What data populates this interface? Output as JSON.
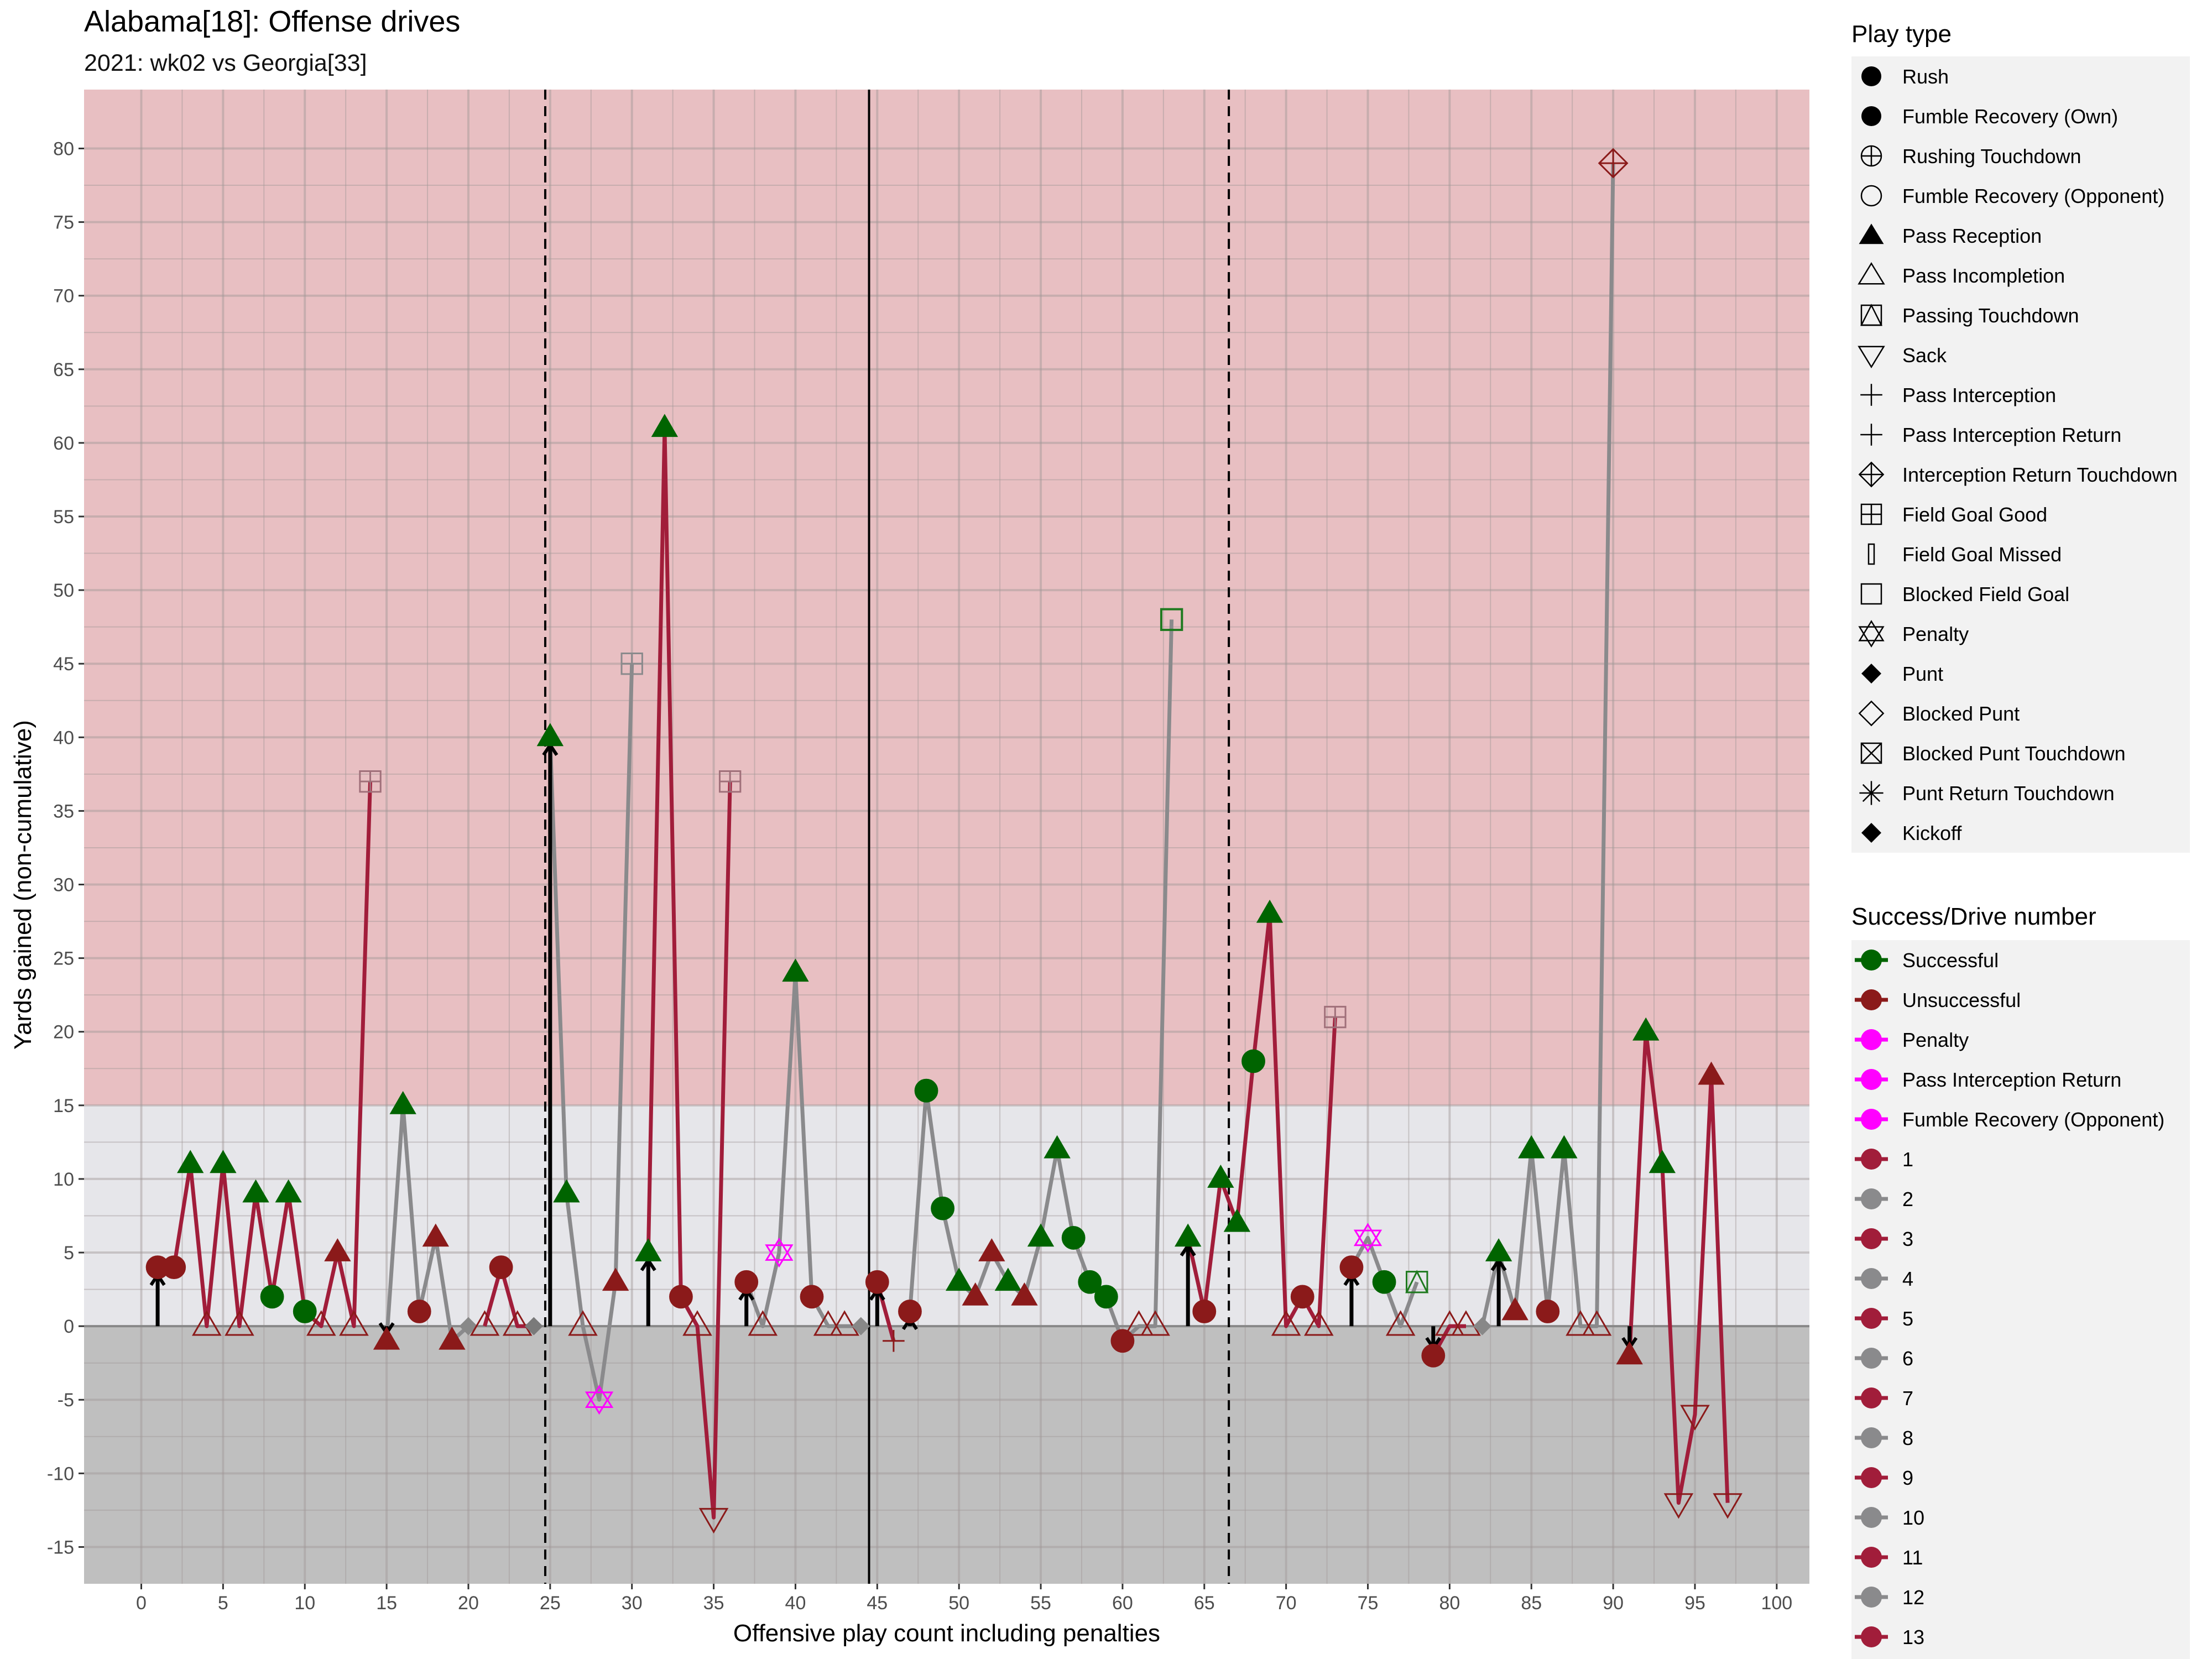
{
  "chart_data": {
    "type": "line",
    "title": "Alabama[18]: Offense drives",
    "subtitle": "2021: wk02 vs Georgia[33]",
    "xlabel": "Offensive play count including penalties",
    "ylabel": "Yards gained (non-cumulative)",
    "xlim": [
      -3.5,
      102
    ],
    "ylim": [
      -17.5,
      84
    ],
    "x_ticks": [
      0,
      5,
      10,
      15,
      20,
      25,
      30,
      35,
      40,
      45,
      50,
      55,
      60,
      65,
      70,
      75,
      80,
      85,
      90,
      95,
      100
    ],
    "y_ticks": [
      -15,
      -10,
      -5,
      0,
      5,
      10,
      15,
      20,
      25,
      30,
      35,
      40,
      45,
      50,
      55,
      60,
      65,
      70,
      75,
      80
    ],
    "bands": [
      {
        "from": 15,
        "to": 84,
        "color": "#e8bfc2"
      },
      {
        "from": 0,
        "to": 15,
        "color": "#e6e6ea"
      },
      {
        "from": -17.5,
        "to": 0,
        "color": "#bfbfbf"
      }
    ],
    "vlines": [
      {
        "x": 24.7,
        "style": "dashed"
      },
      {
        "x": 44.5,
        "style": "solid"
      },
      {
        "x": 66.5,
        "style": "dashed"
      }
    ],
    "drive_colors": {
      "odd": "#a11d3a",
      "even": "#8a8a8c"
    },
    "success_colors": {
      "Successful": "#006400",
      "Unsuccessful": "#8b1a1a",
      "Penalty": "#ff00ff"
    },
    "series": [
      {
        "name": "1",
        "points": [
          [
            1,
            4,
            "rush",
            "Unsuccessful"
          ],
          [
            2,
            4,
            "rush",
            "Unsuccessful"
          ],
          [
            3,
            11,
            "pass",
            "Successful"
          ],
          [
            4,
            0,
            "inc",
            "Unsuccessful"
          ],
          [
            5,
            11,
            "pass",
            "Successful"
          ],
          [
            6,
            0,
            "inc",
            "Unsuccessful"
          ],
          [
            7,
            9,
            "pass",
            "Successful"
          ],
          [
            8,
            2,
            "rush",
            "Successful"
          ],
          [
            9,
            9,
            "pass",
            "Successful"
          ],
          [
            10,
            1,
            "rush",
            "Successful"
          ],
          [
            11,
            0,
            "inc",
            "Unsuccessful"
          ],
          [
            12,
            5,
            "pass",
            "Unsuccessful"
          ],
          [
            13,
            0,
            "inc",
            "Unsuccessful"
          ],
          [
            14,
            37,
            "fg",
            "Unsuccessful"
          ]
        ]
      },
      {
        "name": "2",
        "points": [
          [
            15,
            -1,
            "pass",
            "Unsuccessful"
          ],
          [
            16,
            15,
            "pass",
            "Successful"
          ],
          [
            17,
            1,
            "rush",
            "Unsuccessful"
          ],
          [
            18,
            6,
            "pass",
            "Unsuccessful"
          ],
          [
            19,
            -1,
            "pass",
            "Unsuccessful"
          ],
          [
            20,
            0,
            "punt",
            "Unsuccessful"
          ]
        ]
      },
      {
        "name": "3",
        "points": [
          [
            21,
            0,
            "inc",
            "Unsuccessful"
          ],
          [
            22,
            4,
            "rush",
            "Unsuccessful"
          ],
          [
            23,
            0,
            "inc",
            "Unsuccessful"
          ],
          [
            24,
            0,
            "punt",
            "Unsuccessful"
          ]
        ]
      },
      {
        "name": "4",
        "points": [
          [
            25,
            40,
            "pass",
            "Successful"
          ],
          [
            26,
            9,
            "pass",
            "Successful"
          ],
          [
            27,
            0,
            "inc",
            "Unsuccessful"
          ],
          [
            28,
            -5,
            "pen",
            "Penalty"
          ],
          [
            29,
            3,
            "pass",
            "Unsuccessful"
          ],
          [
            30,
            45,
            "fg",
            "Unsuccessful"
          ]
        ]
      },
      {
        "name": "5",
        "points": [
          [
            31,
            5,
            "pass",
            "Successful"
          ],
          [
            32,
            61,
            "pass",
            "Successful"
          ],
          [
            33,
            2,
            "rush",
            "Unsuccessful"
          ],
          [
            34,
            0,
            "inc",
            "Unsuccessful"
          ],
          [
            35,
            -13,
            "sack",
            "Unsuccessful"
          ],
          [
            36,
            37,
            "fg",
            "Unsuccessful"
          ]
        ]
      },
      {
        "name": "6",
        "points": [
          [
            37,
            3,
            "rush",
            "Unsuccessful"
          ],
          [
            38,
            0,
            "inc",
            "Unsuccessful"
          ],
          [
            39,
            5,
            "pen",
            "Penalty"
          ],
          [
            40,
            24,
            "pass",
            "Successful"
          ],
          [
            41,
            2,
            "rush",
            "Unsuccessful"
          ],
          [
            42,
            0,
            "inc",
            "Unsuccessful"
          ],
          [
            43,
            0,
            "inc",
            "Unsuccessful"
          ],
          [
            44,
            0,
            "punt",
            "Unsuccessful"
          ]
        ]
      },
      {
        "name": "7",
        "points": [
          [
            45,
            3,
            "rush",
            "Unsuccessful"
          ],
          [
            46,
            -1,
            "int",
            "Unsuccessful"
          ]
        ]
      },
      {
        "name": "8",
        "points": [
          [
            47,
            1,
            "rush",
            "Unsuccessful"
          ],
          [
            48,
            16,
            "rush",
            "Successful"
          ],
          [
            49,
            8,
            "rush",
            "Successful"
          ],
          [
            50,
            3,
            "pass",
            "Successful"
          ],
          [
            51,
            2,
            "pass",
            "Unsuccessful"
          ],
          [
            52,
            5,
            "pass",
            "Unsuccessful"
          ],
          [
            53,
            3,
            "pass",
            "Successful"
          ],
          [
            54,
            2,
            "pass",
            "Unsuccessful"
          ],
          [
            55,
            6,
            "pass",
            "Successful"
          ],
          [
            56,
            12,
            "pass",
            "Successful"
          ],
          [
            57,
            6,
            "rush",
            "Successful"
          ],
          [
            58,
            3,
            "rush",
            "Successful"
          ],
          [
            59,
            2,
            "rush",
            "Successful"
          ],
          [
            60,
            -1,
            "rush",
            "Unsuccessful"
          ],
          [
            61,
            0,
            "inc",
            "Unsuccessful"
          ],
          [
            62,
            0,
            "inc",
            "Unsuccessful"
          ],
          [
            63,
            48,
            "bfg",
            "Successful"
          ]
        ]
      },
      {
        "name": "9",
        "points": [
          [
            64,
            6,
            "pass",
            "Successful"
          ],
          [
            65,
            1,
            "rush",
            "Unsuccessful"
          ],
          [
            66,
            10,
            "pass",
            "Successful"
          ],
          [
            67,
            7,
            "pass",
            "Successful"
          ],
          [
            68,
            18,
            "rush",
            "Successful"
          ],
          [
            69,
            28,
            "pass",
            "Successful"
          ],
          [
            70,
            0,
            "inc",
            "Unsuccessful"
          ],
          [
            71,
            2,
            "rush",
            "Unsuccessful"
          ],
          [
            72,
            0,
            "inc",
            "Unsuccessful"
          ],
          [
            73,
            21,
            "fg",
            "Unsuccessful"
          ]
        ]
      },
      {
        "name": "10",
        "points": [
          [
            74,
            4,
            "rush",
            "Unsuccessful"
          ],
          [
            75,
            6,
            "pen",
            "Penalty"
          ],
          [
            76,
            3,
            "rush",
            "Successful"
          ],
          [
            77,
            0,
            "inc",
            "Unsuccessful"
          ],
          [
            78,
            3,
            "ptd",
            "Successful"
          ]
        ]
      },
      {
        "name": "11",
        "points": [
          [
            79,
            -2,
            "rush",
            "Unsuccessful"
          ],
          [
            80,
            0,
            "inc",
            "Unsuccessful"
          ],
          [
            81,
            0,
            "inc",
            "Unsuccessful"
          ]
        ]
      },
      {
        "name": "12",
        "points": [
          [
            82,
            0,
            "punt",
            "Unsuccessful"
          ],
          [
            83,
            5,
            "pass",
            "Successful"
          ],
          [
            84,
            1,
            "pass",
            "Unsuccessful"
          ],
          [
            85,
            12,
            "pass",
            "Successful"
          ],
          [
            86,
            1,
            "rush",
            "Unsuccessful"
          ],
          [
            87,
            12,
            "pass",
            "Successful"
          ],
          [
            88,
            0,
            "inc",
            "Unsuccessful"
          ],
          [
            89,
            0,
            "inc",
            "Unsuccessful"
          ],
          [
            90,
            79,
            "intd",
            "Unsuccessful"
          ]
        ]
      },
      {
        "name": "13",
        "points": [
          [
            91,
            -2,
            "pass",
            "Unsuccessful"
          ],
          [
            92,
            20,
            "pass",
            "Successful"
          ],
          [
            93,
            11,
            "pass",
            "Successful"
          ],
          [
            94,
            -12,
            "sack",
            "Unsuccessful"
          ],
          [
            95,
            -6,
            "sack",
            "Unsuccessful"
          ],
          [
            96,
            17,
            "pass",
            "Unsuccessful"
          ],
          [
            97,
            -12,
            "sack",
            "Unsuccessful"
          ]
        ]
      }
    ],
    "drive_start_arrows": [
      [
        1,
        4
      ],
      [
        15,
        -1
      ],
      [
        25,
        40
      ],
      [
        31,
        5
      ],
      [
        37,
        3
      ],
      [
        45,
        3
      ],
      [
        47,
        1
      ],
      [
        64,
        6
      ],
      [
        74,
        4
      ],
      [
        79,
        -2
      ],
      [
        83,
        5
      ],
      [
        91,
        -2
      ]
    ]
  },
  "legend": {
    "play_type_title": "Play type",
    "play_types": [
      {
        "label": "Rush",
        "icon": "filled-circle"
      },
      {
        "label": "Fumble Recovery (Own)",
        "icon": "filled-circle"
      },
      {
        "label": "Rushing Touchdown",
        "icon": "circle-plus"
      },
      {
        "label": "Fumble Recovery (Opponent)",
        "icon": "open-circle"
      },
      {
        "label": "Pass Reception",
        "icon": "filled-triangle"
      },
      {
        "label": "Pass Incompletion",
        "icon": "open-triangle"
      },
      {
        "label": "Passing Touchdown",
        "icon": "square-triangle"
      },
      {
        "label": "Sack",
        "icon": "open-triangle-down"
      },
      {
        "label": "Pass Interception",
        "icon": "plus"
      },
      {
        "label": "Pass Interception Return",
        "icon": "plus"
      },
      {
        "label": "Interception Return Touchdown",
        "icon": "diamond-plus"
      },
      {
        "label": "Field Goal Good",
        "icon": "square-plus"
      },
      {
        "label": "Field Goal Missed",
        "icon": "thin-rect"
      },
      {
        "label": "Blocked Field Goal",
        "icon": "open-square"
      },
      {
        "label": "Penalty",
        "icon": "star-of-david"
      },
      {
        "label": "Punt",
        "icon": "filled-diamond"
      },
      {
        "label": "Blocked Punt",
        "icon": "open-diamond"
      },
      {
        "label": "Blocked Punt Touchdown",
        "icon": "square-x"
      },
      {
        "label": "Punt Return Touchdown",
        "icon": "asterisk"
      },
      {
        "label": "Kickoff",
        "icon": "filled-diamond"
      }
    ],
    "success_title": "Success/Drive number",
    "success_items": [
      {
        "label": "Successful",
        "color": "#006400"
      },
      {
        "label": "Unsuccessful",
        "color": "#8b1a1a"
      },
      {
        "label": "Penalty",
        "color": "#ff00ff"
      },
      {
        "label": "Pass Interception Return",
        "color": "#ff00ff"
      },
      {
        "label": "Fumble Recovery (Opponent)",
        "color": "#ff00ff"
      },
      {
        "label": "1",
        "color": "#a11d3a"
      },
      {
        "label": "2",
        "color": "#8a8a8c"
      },
      {
        "label": "3",
        "color": "#a11d3a"
      },
      {
        "label": "4",
        "color": "#8a8a8c"
      },
      {
        "label": "5",
        "color": "#a11d3a"
      },
      {
        "label": "6",
        "color": "#8a8a8c"
      },
      {
        "label": "7",
        "color": "#a11d3a"
      },
      {
        "label": "8",
        "color": "#8a8a8c"
      },
      {
        "label": "9",
        "color": "#a11d3a"
      },
      {
        "label": "10",
        "color": "#8a8a8c"
      },
      {
        "label": "11",
        "color": "#a11d3a"
      },
      {
        "label": "12",
        "color": "#8a8a8c"
      },
      {
        "label": "13",
        "color": "#a11d3a"
      }
    ]
  }
}
